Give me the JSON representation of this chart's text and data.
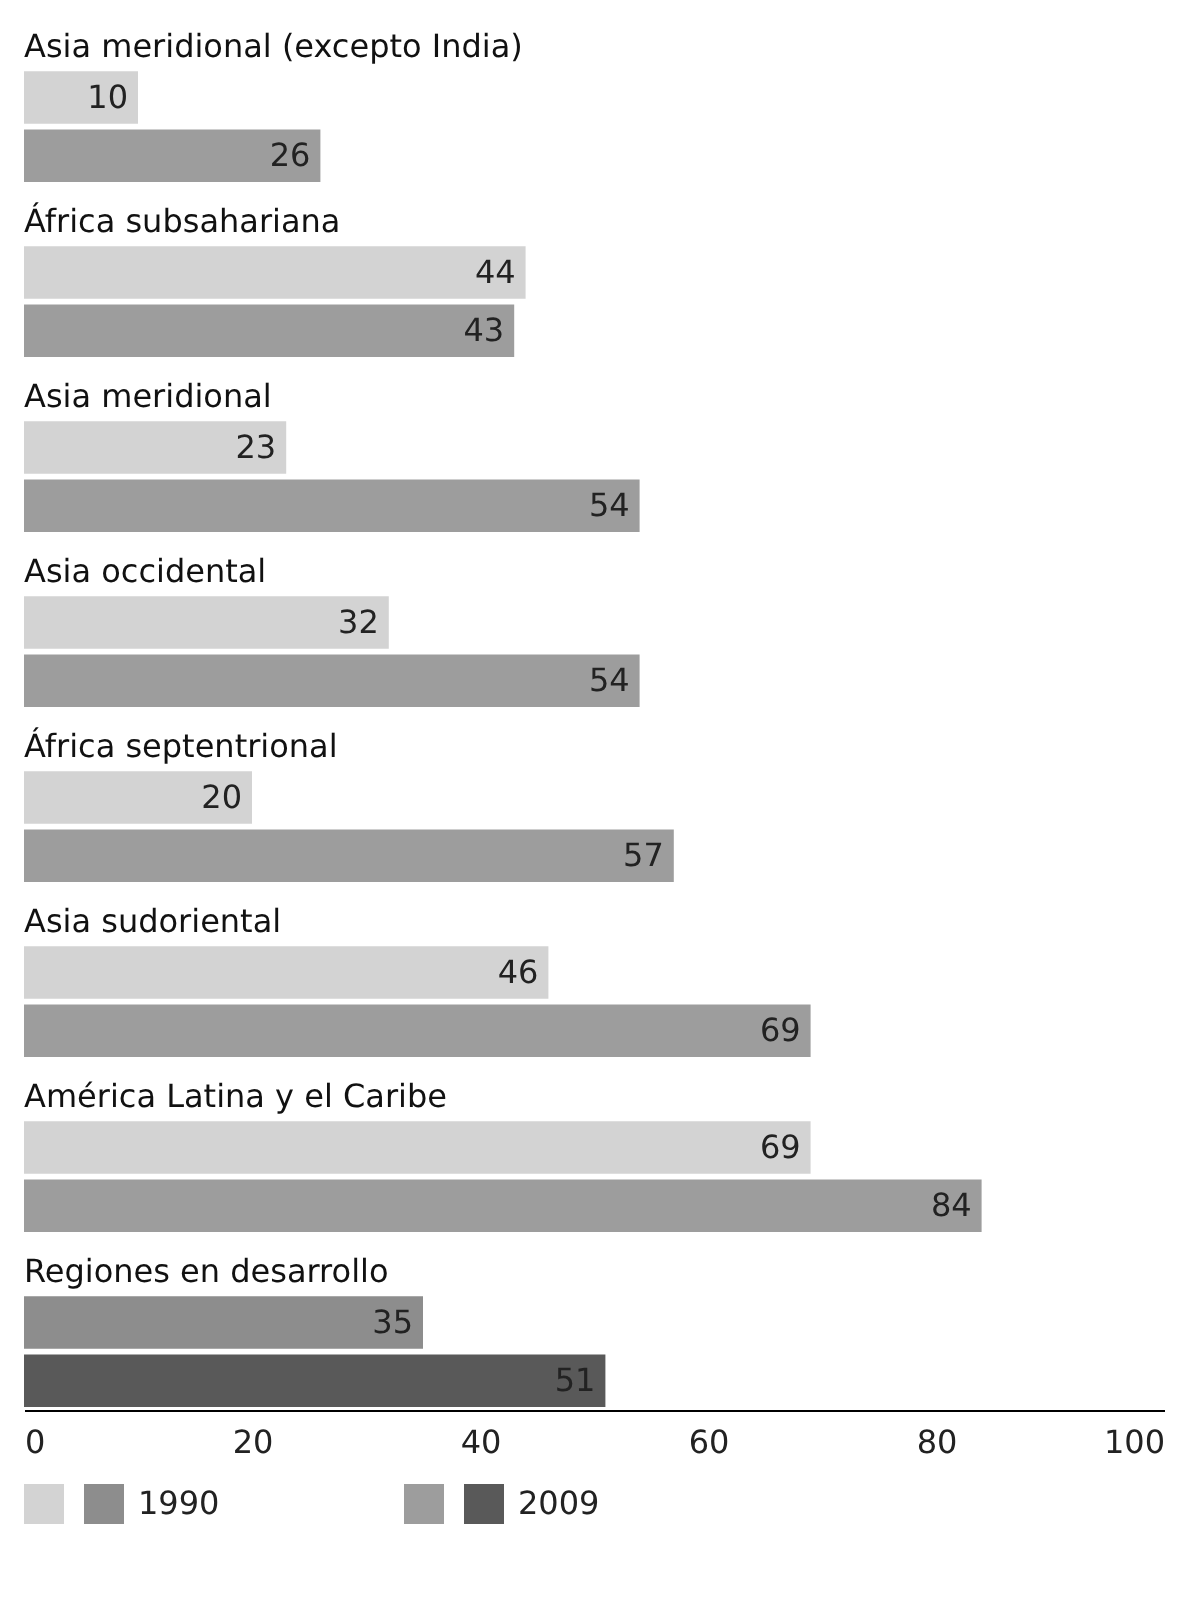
{
  "chart_data": {
    "type": "bar",
    "orientation": "horizontal",
    "categories": [
      "Asia meridional (excepto India)",
      "África subsahariana",
      "Asia meridional",
      "Asia occidental",
      "África septentrional",
      "Asia sudoriental",
      "América Latina y el Caribe",
      "Regiones en desarrollo"
    ],
    "series": [
      {
        "name": "1990",
        "values": [
          10,
          44,
          23,
          32,
          20,
          46,
          69,
          35
        ],
        "colors": [
          "#d3d3d3",
          "#d3d3d3",
          "#d3d3d3",
          "#d3d3d3",
          "#d3d3d3",
          "#d3d3d3",
          "#d3d3d3",
          "#8d8d8d"
        ]
      },
      {
        "name": "2009",
        "values": [
          26,
          43,
          54,
          54,
          57,
          69,
          84,
          51
        ],
        "colors": [
          "#9d9d9d",
          "#9d9d9d",
          "#9d9d9d",
          "#9d9d9d",
          "#9d9d9d",
          "#9d9d9d",
          "#9d9d9d",
          "#595959"
        ]
      }
    ],
    "xlim": [
      0,
      100
    ],
    "xticks": [
      0,
      20,
      40,
      60,
      80,
      100
    ],
    "data_labels": true,
    "grid": false,
    "legend": "bottom"
  }
}
